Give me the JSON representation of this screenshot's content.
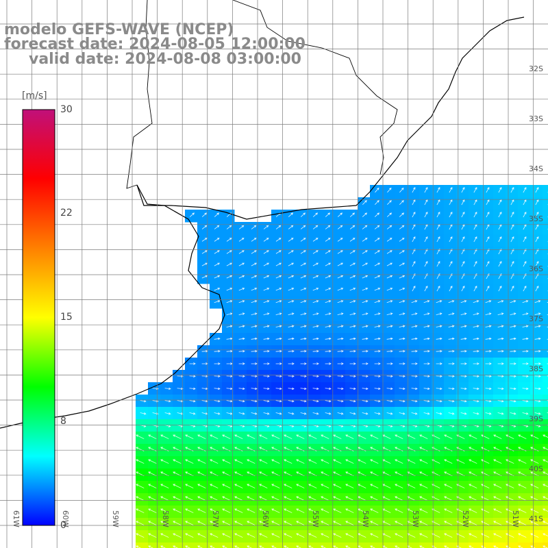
{
  "title": {
    "line1": "modelo GEFS-WAVE (NCEP)",
    "line2": "forecast date: 2024-08-05 12:00:00",
    "line3": "valid date: 2024-08-08 03:00:00"
  },
  "colorbar": {
    "unit": "[m/s]",
    "ticks": [
      "30",
      "22",
      "15",
      "8",
      "0"
    ],
    "stops": [
      "#0000ff",
      "#00ffff",
      "#00ff00",
      "#ffff00",
      "#ff8000",
      "#ff0000",
      "#c0107a"
    ]
  },
  "map": {
    "lon_labels": [
      "61W",
      "60W",
      "59W",
      "58W",
      "57W",
      "56W",
      "55W",
      "54W",
      "53W",
      "52W",
      "51W"
    ],
    "lat_labels": [
      "32S",
      "33S",
      "34S",
      "35S",
      "36S",
      "37S",
      "38S",
      "39S",
      "40S",
      "41S"
    ],
    "colors": {
      "land": "#ffffff",
      "coast": "#000000",
      "grid": "#7a7a7a",
      "arrow": "#ffffff"
    }
  }
}
